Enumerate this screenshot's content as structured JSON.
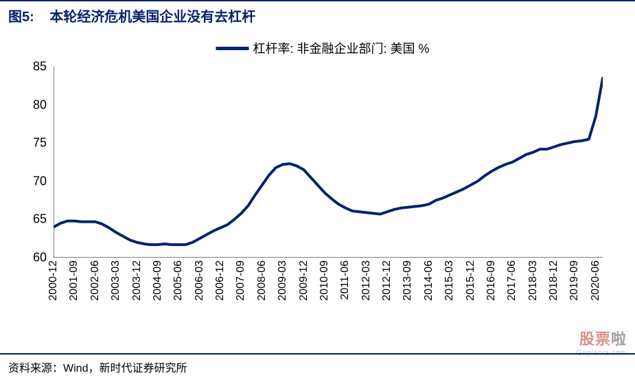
{
  "title_prefix": "图5:",
  "title_text": "本轮经济危机美国企业没有去杠杆",
  "legend_label": "杠杆率: 非金融企业部门: 美国 %",
  "footer_label": "资料来源：",
  "footer_source": "Wind，新时代证券研究所",
  "watermark_main_a": "股票",
  "watermark_main_b": "啦",
  "watermark_sub": "Gupiaola.com",
  "chart": {
    "type": "line",
    "series_color": "#08226b",
    "line_width": 4,
    "background_color": "#ffffff",
    "axis_color": "#000000",
    "ylim": [
      60,
      85
    ],
    "ytick_step": 5,
    "yticks": [
      60,
      65,
      70,
      75,
      80,
      85
    ],
    "x_categories": [
      "2000-12",
      "2001-09",
      "2002-06",
      "2003-03",
      "2003-12",
      "2004-09",
      "2005-06",
      "2006-03",
      "2006-12",
      "2007-09",
      "2008-06",
      "2009-03",
      "2009-12",
      "2010-09",
      "2011-06",
      "2012-03",
      "2012-12",
      "2013-09",
      "2014-06",
      "2015-03",
      "2015-12",
      "2016-09",
      "2017-06",
      "2018-03",
      "2018-12",
      "2019-09",
      "2020-06"
    ],
    "all_x": [
      "2000-12",
      "2001-03",
      "2001-06",
      "2001-09",
      "2001-12",
      "2002-03",
      "2002-06",
      "2002-09",
      "2002-12",
      "2003-03",
      "2003-06",
      "2003-09",
      "2003-12",
      "2004-03",
      "2004-06",
      "2004-09",
      "2004-12",
      "2005-03",
      "2005-06",
      "2005-09",
      "2005-12",
      "2006-03",
      "2006-06",
      "2006-09",
      "2006-12",
      "2007-03",
      "2007-06",
      "2007-09",
      "2007-12",
      "2008-03",
      "2008-06",
      "2008-09",
      "2008-12",
      "2009-03",
      "2009-06",
      "2009-09",
      "2009-12",
      "2010-03",
      "2010-06",
      "2010-09",
      "2010-12",
      "2011-03",
      "2011-06",
      "2011-09",
      "2011-12",
      "2012-03",
      "2012-06",
      "2012-09",
      "2012-12",
      "2013-03",
      "2013-06",
      "2013-09",
      "2013-12",
      "2014-03",
      "2014-06",
      "2014-09",
      "2014-12",
      "2015-03",
      "2015-06",
      "2015-09",
      "2015-12",
      "2016-03",
      "2016-06",
      "2016-09",
      "2016-12",
      "2017-03",
      "2017-06",
      "2017-09",
      "2017-12",
      "2018-03",
      "2018-06",
      "2018-09",
      "2018-12",
      "2019-03",
      "2019-06",
      "2019-09",
      "2019-12",
      "2020-03",
      "2020-06",
      "2020-09"
    ],
    "all_y": [
      64.0,
      64.5,
      64.8,
      64.8,
      64.7,
      64.7,
      64.7,
      64.4,
      63.9,
      63.3,
      62.8,
      62.3,
      62.0,
      61.8,
      61.7,
      61.7,
      61.8,
      61.7,
      61.7,
      61.7,
      62.0,
      62.5,
      63.0,
      63.5,
      63.9,
      64.3,
      65.0,
      65.8,
      66.8,
      68.2,
      69.5,
      70.8,
      71.8,
      72.2,
      72.3,
      72.0,
      71.5,
      70.5,
      69.5,
      68.5,
      67.7,
      67.0,
      66.5,
      66.1,
      66.0,
      65.9,
      65.8,
      65.7,
      66.0,
      66.3,
      66.5,
      66.6,
      66.7,
      66.8,
      67.0,
      67.5,
      67.8,
      68.2,
      68.6,
      69.0,
      69.5,
      70.0,
      70.7,
      71.3,
      71.8,
      72.2,
      72.5,
      73.0,
      73.5,
      73.8,
      74.2,
      74.2,
      74.5,
      74.8,
      75.0,
      75.2,
      75.3,
      75.5,
      78.5,
      83.5
    ],
    "title_fontsize": 20,
    "label_fontsize": 18,
    "xtick_fontsize": 16
  }
}
